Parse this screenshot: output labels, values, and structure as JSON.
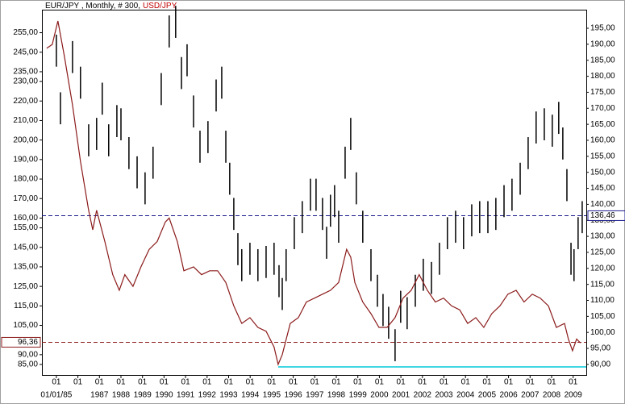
{
  "chart_data": {
    "type": "hl-bar-line",
    "title": "EUR/JPY , Monthly, # 300,",
    "xlim": [
      1984.33,
      2009.61
    ],
    "ylim": [
      79.6,
      266.8
    ],
    "y2lim": [
      86.7,
      200.8
    ],
    "yticks": [
      {
        "value": 85,
        "label": "85,00"
      },
      {
        "value": 90,
        "label": "90,00"
      },
      {
        "value": 105,
        "label": "105,00"
      },
      {
        "value": 115,
        "label": "115,00"
      },
      {
        "value": 125,
        "label": "125,00"
      },
      {
        "value": 135,
        "label": "135,00"
      },
      {
        "value": 145,
        "label": "145,00"
      },
      {
        "value": 155,
        "label": "155,00"
      },
      {
        "value": 160,
        "label": "160,00"
      },
      {
        "value": 170,
        "label": "170,00"
      },
      {
        "value": 180,
        "label": "180,00"
      },
      {
        "value": 190,
        "label": "190,00"
      },
      {
        "value": 200,
        "label": "200,00"
      },
      {
        "value": 210,
        "label": "210,00"
      },
      {
        "value": 220,
        "label": "220,00"
      },
      {
        "value": 230,
        "label": "230,00"
      },
      {
        "value": 235,
        "label": "235,00"
      },
      {
        "value": 245,
        "label": "245,00"
      },
      {
        "value": 255,
        "label": "255,00"
      }
    ],
    "y2ticks": [
      {
        "value": 90,
        "label": "90,00"
      },
      {
        "value": 95,
        "label": "95,00"
      },
      {
        "value": 100,
        "label": "100,00"
      },
      {
        "value": 105,
        "label": "105,00"
      },
      {
        "value": 110,
        "label": "110,00"
      },
      {
        "value": 115,
        "label": "115,00"
      },
      {
        "value": 120,
        "label": "120,00"
      },
      {
        "value": 125,
        "label": "125,00"
      },
      {
        "value": 130,
        "label": "130,00"
      },
      {
        "value": 135,
        "label": "135,00"
      },
      {
        "value": 140,
        "label": "140,00"
      },
      {
        "value": 145,
        "label": "145,00"
      },
      {
        "value": 150,
        "label": "150,00"
      },
      {
        "value": 155,
        "label": "155,00"
      },
      {
        "value": 160,
        "label": "160,00"
      },
      {
        "value": 165,
        "label": "165,00"
      },
      {
        "value": 170,
        "label": "170,00"
      },
      {
        "value": 175,
        "label": "175,00"
      },
      {
        "value": 180,
        "label": "180,00"
      },
      {
        "value": 185,
        "label": "185,00"
      },
      {
        "value": 190,
        "label": "190,00"
      },
      {
        "value": 195,
        "label": "195,00"
      }
    ],
    "xticks": [
      {
        "value": 1985,
        "label": "01"
      },
      {
        "value": 1986,
        "label": "01"
      },
      {
        "value": 1987,
        "label": "01"
      },
      {
        "value": 1988,
        "label": "01"
      },
      {
        "value": 1989,
        "label": "01"
      },
      {
        "value": 1990,
        "label": "01"
      },
      {
        "value": 1991,
        "label": "01"
      },
      {
        "value": 1992,
        "label": "01"
      },
      {
        "value": 1993,
        "label": "01"
      },
      {
        "value": 1994,
        "label": "01"
      },
      {
        "value": 1995,
        "label": "01"
      },
      {
        "value": 1996,
        "label": "01"
      },
      {
        "value": 1997,
        "label": "01"
      },
      {
        "value": 1998,
        "label": "01"
      },
      {
        "value": 1999,
        "label": "01"
      },
      {
        "value": 2000,
        "label": "01"
      },
      {
        "value": 2001,
        "label": "01"
      },
      {
        "value": 2002,
        "label": "01"
      },
      {
        "value": 2003,
        "label": "01"
      },
      {
        "value": 2004,
        "label": "01"
      },
      {
        "value": 2005,
        "label": "01"
      },
      {
        "value": 2006,
        "label": "01"
      },
      {
        "value": 2007,
        "label": "01"
      },
      {
        "value": 2008,
        "label": "01"
      },
      {
        "value": 2009,
        "label": "01"
      }
    ],
    "xticks_years": [
      {
        "value": 1985,
        "label": "01/01/85"
      },
      1987,
      1988,
      1989,
      1990,
      1991,
      1992,
      1993,
      1994,
      1995,
      1996,
      1997,
      1998,
      1999,
      2000,
      2001,
      2002,
      2003,
      2004,
      2005,
      2006,
      2007,
      2008,
      2009
    ],
    "series": [
      {
        "color": "#000000",
        "axis": "y2",
        "style": "hl",
        "x": [
          1985.0,
          1985.19,
          1985.75,
          1986.12,
          1986.5,
          1986.87,
          1987.13,
          1987.43,
          1987.81,
          1988.0,
          1988.37,
          1988.75,
          1989.12,
          1989.49,
          1989.87,
          1990.24,
          1990.54,
          1990.81,
          1991.07,
          1991.37,
          1991.67,
          1992.04,
          1992.42,
          1992.68,
          1992.87,
          1993.05,
          1993.24,
          1993.43,
          1993.61,
          1993.99,
          1994.36,
          1994.74,
          1995.11,
          1995.34,
          1995.49,
          1995.67,
          1996.05,
          1996.42,
          1996.8,
          1997.06,
          1997.36,
          1997.55,
          1997.73,
          1997.92,
          1998.11,
          1998.41,
          1998.67,
          1998.93,
          1999.23,
          1999.61,
          1999.91,
          2000.17,
          2000.43,
          2000.73,
          2000.99,
          2001.29,
          2001.67,
          2002.04,
          2002.42,
          2002.79,
          2003.16,
          2003.54,
          2003.91,
          2004.29,
          2004.66,
          2005.04,
          2005.41,
          2005.79,
          2006.16,
          2006.54,
          2006.91,
          2007.28,
          2007.66,
          2008.03,
          2008.33,
          2008.52,
          2008.71,
          2008.9,
          2009.04,
          2009.23,
          2009.42
        ],
        "high": [
          193,
          175,
          191,
          183,
          165,
          167,
          178,
          165,
          171,
          170,
          161,
          155,
          150,
          158,
          181,
          199,
          202,
          186,
          190,
          174,
          163,
          166,
          179,
          183,
          163,
          153,
          142,
          131,
          126,
          128,
          126,
          127,
          128,
          121,
          117,
          126,
          136,
          141,
          148,
          148,
          142,
          133,
          143,
          146,
          138,
          158,
          167,
          150,
          138,
          126,
          118,
          112,
          108,
          101,
          113,
          111,
          118,
          123,
          122,
          128,
          136,
          138,
          136,
          140,
          141,
          141,
          142,
          146,
          148,
          153,
          161,
          169,
          170,
          168,
          172,
          164,
          151,
          128,
          126,
          136,
          141
        ],
        "low": [
          183,
          165,
          181,
          173,
          155,
          157,
          168,
          155,
          161,
          160,
          151,
          145,
          140,
          148,
          171,
          189,
          192,
          176,
          180,
          164,
          153,
          156,
          169,
          173,
          153,
          143,
          132,
          121,
          116,
          118,
          116,
          117,
          118,
          111,
          107,
          116,
          126,
          131,
          138,
          138,
          132,
          123,
          133,
          136,
          128,
          148,
          157,
          140,
          128,
          116,
          108,
          102,
          98,
          91,
          103,
          101,
          108,
          113,
          112,
          118,
          126,
          128,
          126,
          130,
          131,
          131,
          132,
          136,
          138,
          143,
          151,
          159,
          160,
          158,
          162,
          154,
          141,
          118,
          116,
          126,
          131
        ]
      },
      {
        "name": "USD/JPY",
        "color": "#8b1a1a",
        "axis": "y",
        "style": "line",
        "x": [
          1984.55,
          1984.81,
          1985.07,
          1985.37,
          1985.75,
          1986.12,
          1986.5,
          1986.69,
          1986.87,
          1987.25,
          1987.62,
          1987.92,
          1988.18,
          1988.56,
          1988.93,
          1989.31,
          1989.68,
          1990.06,
          1990.24,
          1990.62,
          1990.92,
          1991.37,
          1991.74,
          1992.12,
          1992.49,
          1992.87,
          1993.24,
          1993.61,
          1993.99,
          1994.36,
          1994.74,
          1995.11,
          1995.3,
          1995.49,
          1995.86,
          1996.24,
          1996.61,
          1996.99,
          1997.36,
          1997.73,
          1998.11,
          1998.48,
          1998.67,
          1998.86,
          1999.23,
          1999.61,
          1999.98,
          2000.36,
          2000.73,
          2001.1,
          2001.48,
          2001.85,
          2002.23,
          2002.6,
          2002.98,
          2003.35,
          2003.73,
          2004.1,
          2004.48,
          2004.85,
          2005.22,
          2005.6,
          2005.97,
          2006.35,
          2006.72,
          2007.1,
          2007.47,
          2007.85,
          2008.22,
          2008.6,
          2008.78,
          2008.97,
          2009.16,
          2009.34
        ],
        "values": [
          247,
          249,
          261,
          243,
          218,
          189,
          164,
          154,
          164,
          148,
          131,
          123,
          131,
          125,
          135,
          144,
          148,
          158,
          160,
          148,
          133,
          135,
          131,
          133,
          133,
          127,
          115,
          106,
          109,
          104,
          102,
          94,
          85,
          90,
          106,
          109,
          117,
          119,
          121,
          123,
          127,
          144,
          140,
          127,
          117,
          111,
          104,
          104,
          109,
          119,
          123,
          131,
          123,
          117,
          119,
          115,
          113,
          106,
          109,
          104,
          111,
          115,
          121,
          123,
          117,
          121,
          119,
          115,
          104,
          106,
          98,
          92,
          98,
          96
        ]
      }
    ],
    "ref_lines": [
      {
        "value": 96.36,
        "label": "96,36",
        "axis": "y",
        "color": "#8b1a1a"
      },
      {
        "value": 136.46,
        "label": "136,46",
        "axis": "y2",
        "color": "#1a1a8b"
      }
    ]
  }
}
